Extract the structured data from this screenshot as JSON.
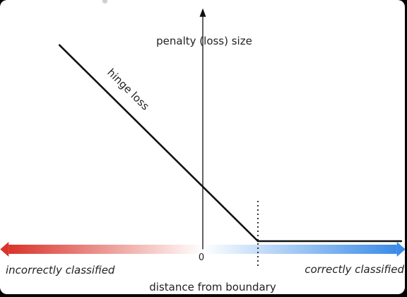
{
  "chart_data": {
    "type": "line",
    "title": "",
    "xlabel": "distance from boundary",
    "ylabel": "penalty (loss) size",
    "origin_label": "0",
    "left_label": "incorrectly classified",
    "right_label": "correctly classified",
    "series": [
      {
        "name": "hinge loss",
        "x": [
          -2.6,
          1.0,
          3.6
        ],
        "y": [
          3.6,
          0.0,
          0.0
        ]
      }
    ],
    "margin_x": 1.0,
    "xlim": [
      -3.65,
      3.65
    ],
    "ylim": [
      -0.25,
      4.25
    ],
    "grid": false,
    "colors": {
      "negative": "#d9342b",
      "neutral": "#ffffff",
      "positive": "#3b8be8",
      "line": "#111111"
    }
  }
}
